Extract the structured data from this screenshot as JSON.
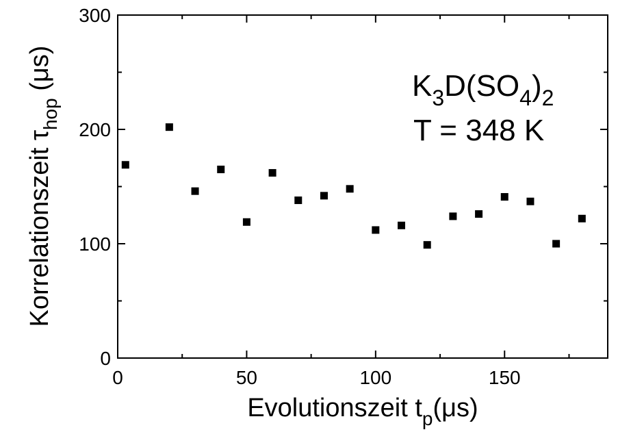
{
  "chart_data": {
    "type": "scatter",
    "title": "",
    "xlabel": {
      "main": "Evolutionszeit t",
      "sub": "p",
      "unit": "(μs)"
    },
    "ylabel": {
      "main": "Korrelationszeit τ",
      "sub": "hop",
      "unit": " (μs)"
    },
    "xlim": [
      0,
      190
    ],
    "ylim": [
      0,
      300
    ],
    "xticks": [
      0,
      50,
      100,
      150
    ],
    "yticks": [
      0,
      100,
      200,
      300
    ],
    "x_minor_step": 25,
    "y_minor_step": 50,
    "grid": false,
    "marker": "square",
    "color": "#000000",
    "series": [
      {
        "x": [
          3,
          20,
          30,
          40,
          50,
          60,
          70,
          80,
          90,
          100,
          110,
          120,
          130,
          140,
          150,
          160,
          170,
          180
        ],
        "y": [
          169,
          202,
          146,
          165,
          119,
          162,
          138,
          142,
          148,
          112,
          116,
          99,
          124,
          126,
          141,
          137,
          100,
          122
        ]
      }
    ],
    "annotations": [
      {
        "parts": [
          {
            "t": "K",
            "sub": false
          },
          {
            "t": "3",
            "sub": true
          },
          {
            "t": "D(SO",
            "sub": false
          },
          {
            "t": "4",
            "sub": true
          },
          {
            "t": ")",
            "sub": false
          },
          {
            "t": "2",
            "sub": true
          }
        ]
      },
      {
        "text": "T = 348 K"
      }
    ]
  }
}
